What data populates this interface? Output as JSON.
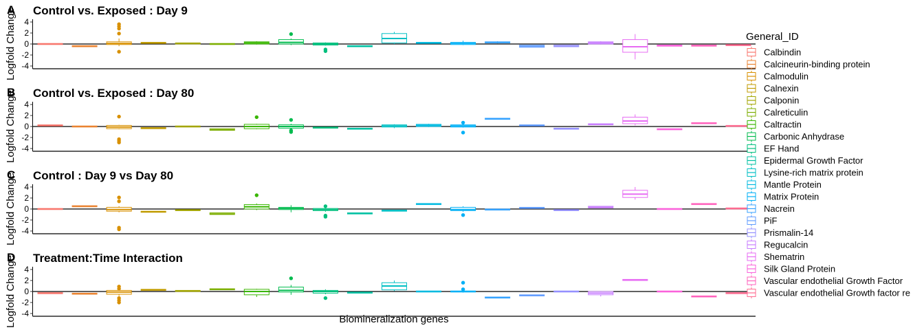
{
  "chart_data": {
    "type": "box",
    "x_axis_title": "Biomineralization genes",
    "y_axis_title": "Logfold Change",
    "legend_title": "General_ID",
    "legend_position": "right",
    "grid": false,
    "y_ticks": [
      4,
      2,
      0,
      -2,
      -4
    ],
    "ylim": [
      -4.5,
      4.5
    ],
    "categories": [
      {
        "name": "Calbindin",
        "color": "#F8766D"
      },
      {
        "name": "Calcineurin-binding protein",
        "color": "#EA8331"
      },
      {
        "name": "Calmodulin",
        "color": "#D89000"
      },
      {
        "name": "Calnexin",
        "color": "#C09B00"
      },
      {
        "name": "Calponin",
        "color": "#A3A500"
      },
      {
        "name": "Calreticulin",
        "color": "#7CAE00"
      },
      {
        "name": "Caltractin",
        "color": "#39B600"
      },
      {
        "name": "Carbonic Anhydrase",
        "color": "#00BB4E"
      },
      {
        "name": "EF Hand",
        "color": "#00BF7D"
      },
      {
        "name": "Epidermal Growth Factor",
        "color": "#00C1A3"
      },
      {
        "name": "Lysine-rich matrix protein",
        "color": "#00BFC4"
      },
      {
        "name": "Mantle Protein",
        "color": "#00BAE0"
      },
      {
        "name": "Matrix Protein",
        "color": "#00B0F6"
      },
      {
        "name": "Nacrein",
        "color": "#35A2FF"
      },
      {
        "name": "PiF",
        "color": "#619CFF"
      },
      {
        "name": "Prismalin-14",
        "color": "#9590FF"
      },
      {
        "name": "Regucalcin",
        "color": "#C77CFF"
      },
      {
        "name": "Shematrin",
        "color": "#E76BF3"
      },
      {
        "name": "Silk Gland Protein",
        "color": "#FA62DB"
      },
      {
        "name": "Vascular endothelial Growth Factor",
        "color": "#FF62BC"
      },
      {
        "name": "Vascular endothelial Growth factor re",
        "color": "#FF6C91"
      }
    ],
    "panels": [
      {
        "tag": "A",
        "title": "Control vs. Exposed : Day 9",
        "boxes": [
          {
            "q1": -0.1,
            "med": 0.0,
            "q3": 0.1,
            "lo": -0.1,
            "hi": 0.1,
            "out": []
          },
          {
            "q1": -0.5,
            "med": -0.4,
            "q3": -0.3,
            "lo": -0.5,
            "hi": -0.3,
            "out": []
          },
          {
            "q1": -0.1,
            "med": 0.1,
            "q3": 0.4,
            "lo": -0.4,
            "hi": 1.0,
            "out": [
              3.6,
              3.2,
              2.8,
              1.9,
              -1.4
            ]
          },
          {
            "q1": 0.1,
            "med": 0.2,
            "q3": 0.3,
            "lo": 0.1,
            "hi": 0.3,
            "out": []
          },
          {
            "q1": 0.0,
            "med": 0.1,
            "q3": 0.2,
            "lo": 0.0,
            "hi": 0.2,
            "out": []
          },
          {
            "q1": -0.1,
            "med": 0.0,
            "q3": 0.1,
            "lo": -0.1,
            "hi": 0.1,
            "out": []
          },
          {
            "q1": 0.0,
            "med": 0.2,
            "q3": 0.4,
            "lo": -0.1,
            "hi": 0.5,
            "out": []
          },
          {
            "q1": 0.0,
            "med": 0.3,
            "q3": 0.8,
            "lo": -0.2,
            "hi": 1.0,
            "out": [
              1.8
            ]
          },
          {
            "q1": -0.2,
            "med": 0.0,
            "q3": 0.2,
            "lo": -0.3,
            "hi": 0.3,
            "out": [
              -1.0,
              -1.3
            ]
          },
          {
            "q1": -0.5,
            "med": -0.4,
            "q3": -0.3,
            "lo": -0.5,
            "hi": -0.3,
            "out": []
          },
          {
            "q1": 0.2,
            "med": 1.0,
            "q3": 1.9,
            "lo": 0.0,
            "hi": 2.2,
            "out": []
          },
          {
            "q1": 0.1,
            "med": 0.2,
            "q3": 0.3,
            "lo": 0.1,
            "hi": 0.3,
            "out": []
          },
          {
            "q1": -0.1,
            "med": 0.1,
            "q3": 0.3,
            "lo": -0.2,
            "hi": 0.6,
            "out": []
          },
          {
            "q1": 0.2,
            "med": 0.3,
            "q3": 0.4,
            "lo": 0.1,
            "hi": 0.5,
            "out": []
          },
          {
            "q1": -0.6,
            "med": -0.4,
            "q3": -0.2,
            "lo": -0.6,
            "hi": -0.2,
            "out": []
          },
          {
            "q1": -0.5,
            "med": -0.4,
            "q3": -0.2,
            "lo": -0.5,
            "hi": -0.2,
            "out": []
          },
          {
            "q1": 0.0,
            "med": 0.2,
            "q3": 0.4,
            "lo": -0.1,
            "hi": 0.5,
            "out": []
          },
          {
            "q1": -1.5,
            "med": -0.5,
            "q3": 0.8,
            "lo": -2.8,
            "hi": 1.8,
            "out": []
          },
          {
            "q1": -0.4,
            "med": -0.3,
            "q3": -0.2,
            "lo": -0.4,
            "hi": -0.2,
            "out": []
          },
          {
            "q1": -0.4,
            "med": -0.3,
            "q3": -0.2,
            "lo": -0.4,
            "hi": -0.2,
            "out": []
          },
          {
            "q1": -0.3,
            "med": -0.2,
            "q3": -0.1,
            "lo": -0.3,
            "hi": -0.1,
            "out": []
          }
        ]
      },
      {
        "tag": "B",
        "title": "Control vs. Exposed : Day 80",
        "boxes": [
          {
            "q1": 0.1,
            "med": 0.2,
            "q3": 0.3,
            "lo": 0.1,
            "hi": 0.3,
            "out": []
          },
          {
            "q1": -0.1,
            "med": 0.0,
            "q3": 0.1,
            "lo": -0.1,
            "hi": 0.1,
            "out": []
          },
          {
            "q1": -0.4,
            "med": -0.1,
            "q3": 0.2,
            "lo": -0.5,
            "hi": 0.3,
            "out": [
              1.8,
              -2.3,
              -2.6,
              -2.9
            ]
          },
          {
            "q1": -0.4,
            "med": -0.3,
            "q3": -0.2,
            "lo": -0.4,
            "hi": -0.2,
            "out": []
          },
          {
            "q1": -0.1,
            "med": 0.0,
            "q3": 0.1,
            "lo": -0.1,
            "hi": 0.1,
            "out": []
          },
          {
            "q1": -0.7,
            "med": -0.6,
            "q3": -0.4,
            "lo": -0.7,
            "hi": -0.4,
            "out": []
          },
          {
            "q1": -0.4,
            "med": 0.0,
            "q3": 0.4,
            "lo": -0.5,
            "hi": 0.5,
            "out": [
              1.7
            ]
          },
          {
            "q1": -0.3,
            "med": 0.0,
            "q3": 0.3,
            "lo": -0.5,
            "hi": 0.5,
            "out": [
              1.2,
              -0.7,
              -1.0
            ]
          },
          {
            "q1": -0.3,
            "med": -0.2,
            "q3": -0.1,
            "lo": -0.3,
            "hi": -0.1,
            "out": []
          },
          {
            "q1": -0.5,
            "med": -0.4,
            "q3": -0.3,
            "lo": -0.5,
            "hi": -0.3,
            "out": []
          },
          {
            "q1": -0.1,
            "med": 0.1,
            "q3": 0.3,
            "lo": -0.3,
            "hi": 0.4,
            "out": []
          },
          {
            "q1": 0.0,
            "med": 0.2,
            "q3": 0.4,
            "lo": -0.1,
            "hi": 0.5,
            "out": []
          },
          {
            "q1": -0.1,
            "med": 0.1,
            "q3": 0.3,
            "lo": -0.2,
            "hi": 0.4,
            "out": [
              0.7,
              -1.1
            ]
          },
          {
            "q1": 1.3,
            "med": 1.4,
            "q3": 1.5,
            "lo": 1.3,
            "hi": 1.5,
            "out": []
          },
          {
            "q1": 0.1,
            "med": 0.2,
            "q3": 0.3,
            "lo": 0.1,
            "hi": 0.3,
            "out": []
          },
          {
            "q1": -0.5,
            "med": -0.4,
            "q3": -0.3,
            "lo": -0.5,
            "hi": -0.3,
            "out": []
          },
          {
            "q1": 0.3,
            "med": 0.4,
            "q3": 0.5,
            "lo": 0.3,
            "hi": 0.5,
            "out": []
          },
          {
            "q1": 0.5,
            "med": 1.0,
            "q3": 1.7,
            "lo": 0.2,
            "hi": 2.2,
            "out": []
          },
          {
            "q1": -0.6,
            "med": -0.5,
            "q3": -0.4,
            "lo": -0.6,
            "hi": -0.4,
            "out": []
          },
          {
            "q1": 0.5,
            "med": 0.6,
            "q3": 0.7,
            "lo": 0.5,
            "hi": 0.7,
            "out": []
          },
          {
            "q1": 0.0,
            "med": 0.1,
            "q3": 0.2,
            "lo": 0.0,
            "hi": 0.2,
            "out": []
          }
        ]
      },
      {
        "tag": "C",
        "title": "Control : Day 9 vs Day 80",
        "boxes": [
          {
            "q1": -0.1,
            "med": 0.0,
            "q3": 0.1,
            "lo": -0.1,
            "hi": 0.1,
            "out": []
          },
          {
            "q1": 0.4,
            "med": 0.5,
            "q3": 0.6,
            "lo": 0.4,
            "hi": 0.6,
            "out": []
          },
          {
            "q1": -0.4,
            "med": -0.1,
            "q3": 0.3,
            "lo": -0.6,
            "hi": 0.5,
            "out": [
              2.1,
              1.4,
              -3.4,
              -3.7
            ]
          },
          {
            "q1": -0.6,
            "med": -0.5,
            "q3": -0.4,
            "lo": -0.6,
            "hi": -0.4,
            "out": []
          },
          {
            "q1": -0.3,
            "med": -0.2,
            "q3": -0.1,
            "lo": -0.3,
            "hi": -0.1,
            "out": []
          },
          {
            "q1": -1.0,
            "med": -0.9,
            "q3": -0.7,
            "lo": -1.0,
            "hi": -0.7,
            "out": []
          },
          {
            "q1": 0.0,
            "med": 0.4,
            "q3": 0.8,
            "lo": -0.2,
            "hi": 1.0,
            "out": [
              2.5
            ]
          },
          {
            "q1": -0.1,
            "med": 0.1,
            "q3": 0.3,
            "lo": -0.6,
            "hi": 0.7,
            "out": []
          },
          {
            "q1": -0.3,
            "med": -0.1,
            "q3": 0.1,
            "lo": -0.5,
            "hi": 0.3,
            "out": [
              0.5,
              -1.2,
              -1.4
            ]
          },
          {
            "q1": -0.9,
            "med": -0.8,
            "q3": -0.7,
            "lo": -0.9,
            "hi": -0.7,
            "out": []
          },
          {
            "q1": -0.4,
            "med": -0.3,
            "q3": -0.2,
            "lo": -0.4,
            "hi": -0.2,
            "out": []
          },
          {
            "q1": 0.8,
            "med": 0.9,
            "q3": 1.0,
            "lo": 0.8,
            "hi": 1.0,
            "out": []
          },
          {
            "q1": -0.3,
            "med": -0.1,
            "q3": 0.3,
            "lo": -0.5,
            "hi": 0.5,
            "out": [
              -1.1
            ]
          },
          {
            "q1": -0.2,
            "med": -0.1,
            "q3": 0.0,
            "lo": -0.2,
            "hi": 0.0,
            "out": []
          },
          {
            "q1": 0.1,
            "med": 0.2,
            "q3": 0.3,
            "lo": 0.1,
            "hi": 0.3,
            "out": []
          },
          {
            "q1": -0.3,
            "med": -0.2,
            "q3": -0.1,
            "lo": -0.3,
            "hi": -0.1,
            "out": []
          },
          {
            "q1": 0.2,
            "med": 0.3,
            "q3": 0.5,
            "lo": 0.2,
            "hi": 0.5,
            "out": []
          },
          {
            "q1": 2.1,
            "med": 2.7,
            "q3": 3.4,
            "lo": 1.7,
            "hi": 4.0,
            "out": []
          },
          {
            "q1": -0.1,
            "med": 0.0,
            "q3": 0.1,
            "lo": -0.1,
            "hi": 0.1,
            "out": []
          },
          {
            "q1": 0.8,
            "med": 0.9,
            "q3": 1.0,
            "lo": 0.8,
            "hi": 1.0,
            "out": []
          },
          {
            "q1": 0.0,
            "med": 0.1,
            "q3": 0.2,
            "lo": 0.0,
            "hi": 0.2,
            "out": []
          }
        ]
      },
      {
        "tag": "D",
        "title": "Treatment:Time Interaction",
        "boxes": [
          {
            "q1": -0.4,
            "med": -0.3,
            "q3": -0.2,
            "lo": -0.4,
            "hi": -0.2,
            "out": []
          },
          {
            "q1": -0.5,
            "med": -0.4,
            "q3": -0.3,
            "lo": -0.5,
            "hi": -0.3,
            "out": []
          },
          {
            "q1": -0.5,
            "med": -0.1,
            "q3": 0.2,
            "lo": -0.8,
            "hi": 0.4,
            "out": [
              0.9,
              0.5,
              -1.2,
              -1.6,
              -2.0
            ]
          },
          {
            "q1": 0.2,
            "med": 0.3,
            "q3": 0.4,
            "lo": 0.2,
            "hi": 0.4,
            "out": []
          },
          {
            "q1": 0.0,
            "med": 0.1,
            "q3": 0.2,
            "lo": 0.0,
            "hi": 0.2,
            "out": []
          },
          {
            "q1": 0.3,
            "med": 0.4,
            "q3": 0.5,
            "lo": 0.3,
            "hi": 0.5,
            "out": []
          },
          {
            "q1": -0.6,
            "med": 0.0,
            "q3": 0.4,
            "lo": -1.0,
            "hi": 0.5,
            "out": []
          },
          {
            "q1": -0.1,
            "med": 0.2,
            "q3": 0.8,
            "lo": -0.6,
            "hi": 1.2,
            "out": [
              2.4
            ]
          },
          {
            "q1": -0.3,
            "med": 0.0,
            "q3": 0.2,
            "lo": -0.5,
            "hi": 0.4,
            "out": [
              -1.2
            ]
          },
          {
            "q1": -0.3,
            "med": -0.2,
            "q3": -0.1,
            "lo": -0.3,
            "hi": -0.1,
            "out": []
          },
          {
            "q1": 0.3,
            "med": 1.0,
            "q3": 1.6,
            "lo": 0.1,
            "hi": 2.0,
            "out": []
          },
          {
            "q1": -0.1,
            "med": 0.0,
            "q3": 0.1,
            "lo": -0.1,
            "hi": 0.1,
            "out": []
          },
          {
            "q1": -0.1,
            "med": 0.0,
            "q3": 0.1,
            "lo": -0.2,
            "hi": 0.2,
            "out": [
              1.6,
              0.4
            ]
          },
          {
            "q1": -1.2,
            "med": -1.1,
            "q3": -1.0,
            "lo": -1.2,
            "hi": -1.0,
            "out": []
          },
          {
            "q1": -0.8,
            "med": -0.7,
            "q3": -0.6,
            "lo": -0.8,
            "hi": -0.6,
            "out": []
          },
          {
            "q1": -0.1,
            "med": 0.0,
            "q3": 0.1,
            "lo": -0.1,
            "hi": 0.1,
            "out": []
          },
          {
            "q1": -0.6,
            "med": -0.3,
            "q3": 0.0,
            "lo": -0.9,
            "hi": 0.1,
            "out": []
          },
          {
            "q1": 2.0,
            "med": 2.1,
            "q3": 2.2,
            "lo": 2.0,
            "hi": 2.2,
            "out": []
          },
          {
            "q1": -0.1,
            "med": 0.0,
            "q3": 0.1,
            "lo": -0.1,
            "hi": 0.1,
            "out": []
          },
          {
            "q1": -1.0,
            "med": -0.9,
            "q3": -0.8,
            "lo": -1.0,
            "hi": -0.8,
            "out": []
          },
          {
            "q1": -0.4,
            "med": -0.3,
            "q3": -0.2,
            "lo": -0.4,
            "hi": -0.2,
            "out": []
          }
        ]
      }
    ]
  }
}
